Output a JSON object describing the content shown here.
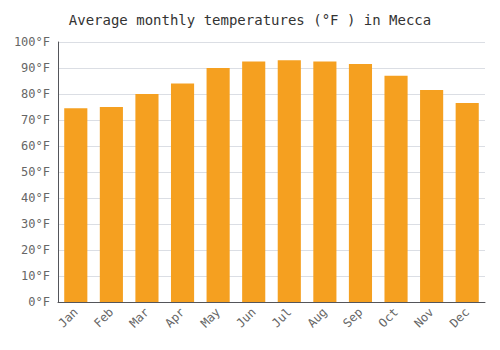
{
  "chart_data": {
    "type": "bar",
    "title": "Average monthly temperatures (°F ) in Mecca",
    "categories": [
      "Jan",
      "Feb",
      "Mar",
      "Apr",
      "May",
      "Jun",
      "Jul",
      "Aug",
      "Sep",
      "Oct",
      "Nov",
      "Dec"
    ],
    "values": [
      74.5,
      75.0,
      80.0,
      84.0,
      90.0,
      92.5,
      93.0,
      92.5,
      91.5,
      87.0,
      81.5,
      76.5
    ],
    "color": "#F5A020",
    "ylim": [
      0,
      100
    ],
    "yticks": [
      {
        "value": 0,
        "label": "0°F"
      },
      {
        "value": 10,
        "label": "10°F"
      },
      {
        "value": 20,
        "label": "20°F"
      },
      {
        "value": 30,
        "label": "30°F"
      },
      {
        "value": 40,
        "label": "40°F"
      },
      {
        "value": 50,
        "label": "50°F"
      },
      {
        "value": 60,
        "label": "60°F"
      },
      {
        "value": 70,
        "label": "70°F"
      },
      {
        "value": 80,
        "label": "80°F"
      },
      {
        "value": 90,
        "label": "90°F"
      },
      {
        "value": 100,
        "label": "100°F"
      }
    ],
    "grid": true
  }
}
